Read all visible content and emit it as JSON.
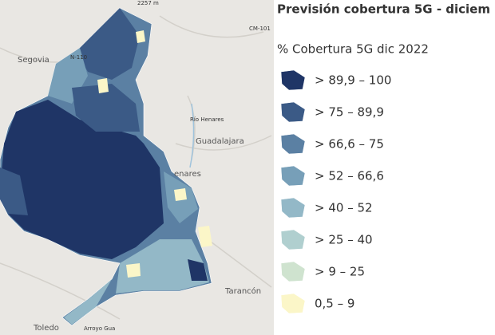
{
  "header": {
    "title": "Previsión cobertura 5G - diciem"
  },
  "legend": {
    "title": "% Cobertura 5G dic 2022",
    "items": [
      {
        "label": "> 89,9 – 100",
        "color": "#1f3566"
      },
      {
        "label": "> 75 – 89,9",
        "color": "#3b5a86"
      },
      {
        "label": "> 66,6 – 75",
        "color": "#5b80a3"
      },
      {
        "label": "> 52 – 66,6",
        "color": "#779fb8"
      },
      {
        "label": "> 40 – 52",
        "color": "#93b8c7"
      },
      {
        "label": "> 25 – 40",
        "color": "#b0cfcf"
      },
      {
        "label": "> 9 – 25",
        "color": "#cfe3cf"
      },
      {
        "label": "0,5 – 9",
        "color": "#fbf6c8"
      }
    ]
  },
  "map": {
    "labels": [
      "Segovia",
      "N-110",
      "CM-101",
      "Guadalajara",
      "Río Henares",
      "enares",
      "Tarancón",
      "Toledo",
      "2257 m",
      "Arroyo Gua"
    ]
  }
}
